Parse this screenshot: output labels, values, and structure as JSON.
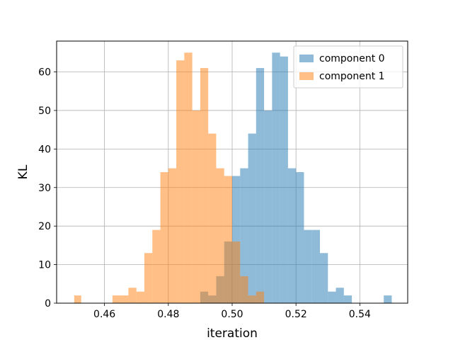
{
  "chart_data": {
    "type": "bar",
    "title": "",
    "xlabel": "iteration",
    "ylabel": "KL",
    "xlim": [
      0.445,
      0.555
    ],
    "ylim": [
      0,
      68
    ],
    "x_ticks": [
      0.46,
      0.48,
      0.5,
      0.52,
      0.54
    ],
    "x_tick_labels": [
      "0.46",
      "0.48",
      "0.50",
      "0.52",
      "0.54"
    ],
    "y_ticks": [
      0,
      10,
      20,
      30,
      40,
      50,
      60
    ],
    "y_tick_labels": [
      "0",
      "10",
      "20",
      "30",
      "40",
      "50",
      "60"
    ],
    "grid": true,
    "legend_position": "top-right",
    "series": [
      {
        "name": "component 0",
        "color": "#1f77b4",
        "opacity": 0.5,
        "bars": [
          [
            0.49,
            0.4925,
            3
          ],
          [
            0.4925,
            0.495,
            2
          ],
          [
            0.495,
            0.4975,
            7
          ],
          [
            0.4975,
            0.5,
            16
          ],
          [
            0.5,
            0.5025,
            33
          ],
          [
            0.5025,
            0.505,
            35
          ],
          [
            0.505,
            0.5075,
            44
          ],
          [
            0.5075,
            0.51,
            61
          ],
          [
            0.51,
            0.5125,
            50
          ],
          [
            0.5125,
            0.515,
            65
          ],
          [
            0.515,
            0.5175,
            64
          ],
          [
            0.5175,
            0.52,
            35
          ],
          [
            0.52,
            0.5225,
            34
          ],
          [
            0.5225,
            0.525,
            19
          ],
          [
            0.525,
            0.5275,
            19
          ],
          [
            0.5275,
            0.53,
            13
          ],
          [
            0.53,
            0.5325,
            3
          ],
          [
            0.5325,
            0.535,
            4
          ],
          [
            0.535,
            0.5375,
            2
          ],
          [
            0.5475,
            0.55,
            2
          ]
        ]
      },
      {
        "name": "component 1",
        "color": "#ff7f0e",
        "opacity": 0.5,
        "bars": [
          [
            0.4505,
            0.4527,
            2
          ],
          [
            0.4625,
            0.465,
            2
          ],
          [
            0.465,
            0.4675,
            2
          ],
          [
            0.4675,
            0.47,
            4
          ],
          [
            0.47,
            0.4725,
            3
          ],
          [
            0.4725,
            0.475,
            13
          ],
          [
            0.475,
            0.4775,
            19
          ],
          [
            0.4775,
            0.48,
            34
          ],
          [
            0.48,
            0.4825,
            35
          ],
          [
            0.4825,
            0.485,
            63
          ],
          [
            0.485,
            0.4875,
            65
          ],
          [
            0.4875,
            0.49,
            50
          ],
          [
            0.49,
            0.4925,
            61
          ],
          [
            0.4925,
            0.495,
            44
          ],
          [
            0.495,
            0.4975,
            35
          ],
          [
            0.4975,
            0.5,
            33
          ],
          [
            0.5,
            0.5025,
            16
          ],
          [
            0.5025,
            0.505,
            7
          ],
          [
            0.505,
            0.5075,
            2
          ],
          [
            0.5075,
            0.51,
            3
          ]
        ]
      }
    ]
  }
}
